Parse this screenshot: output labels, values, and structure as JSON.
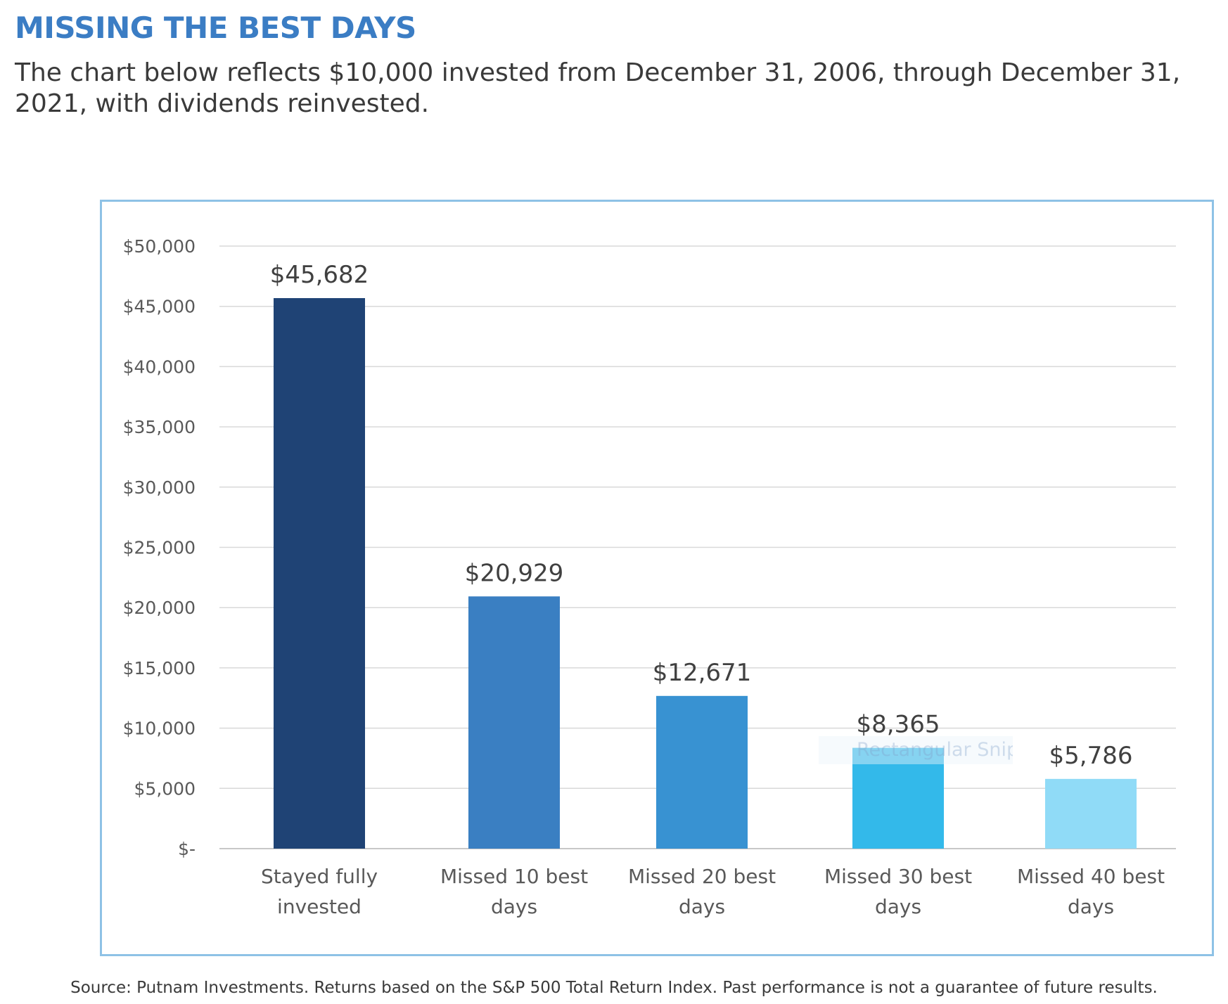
{
  "header": {
    "title": "MISSING THE BEST DAYS",
    "subtitle": "The chart below reflects $10,000 invested from December 31, 2006, through December 31, 2021, with dividends reinvested."
  },
  "chart_data": {
    "type": "bar",
    "categories": [
      "Stayed fully invested",
      "Missed 10 best days",
      "Missed 20 best days",
      "Missed 30 best days",
      "Missed 40 best days"
    ],
    "values": [
      45682,
      20929,
      12671,
      8365,
      5786
    ],
    "data_labels": [
      "$45,682",
      "$20,929",
      "$12,671",
      "$8,365",
      "$5,786"
    ],
    "bar_colors": [
      "#1f4375",
      "#3a7fc2",
      "#3892d2",
      "#33b9ea",
      "#90dbf7"
    ],
    "ylim": [
      0,
      50000
    ],
    "yticks": [
      0,
      5000,
      10000,
      15000,
      20000,
      25000,
      30000,
      35000,
      40000,
      45000,
      50000
    ],
    "ytick_labels": [
      "$-",
      "$5,000",
      "$10,000",
      "$15,000",
      "$20,000",
      "$25,000",
      "$30,000",
      "$35,000",
      "$40,000",
      "$45,000",
      "$50,000"
    ],
    "grid": true,
    "legend": "none"
  },
  "overlay": {
    "tooltip": "Rectangular Snip"
  },
  "footer": {
    "source": "Source: Putnam Investments. Returns based on the S&P 500 Total Return Index. Past performance is not a guarantee of future results."
  }
}
